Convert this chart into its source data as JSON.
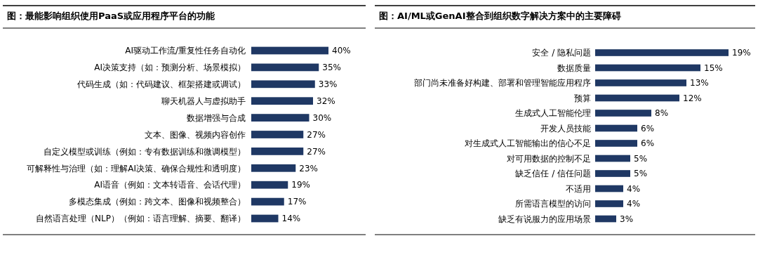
{
  "chart_data": [
    {
      "type": "bar",
      "orientation": "horizontal",
      "title": "图：最能影响组织使用PaaS或应用程序平台的功能",
      "color": "#1f3864",
      "categories": [
        "AI驱动工作流/重复性任务自动化",
        "AI决策支持（如：预测分析、场景模拟）",
        "代码生成（如：代码建议、框架搭建或调试）",
        "聊天机器人与虚拟助手",
        "数据增强与合成",
        "文本、图像、视频内容创作",
        "自定义模型或训练（例如：专有数据训练和微调模型）",
        "可解释性与治理（如：理解AI决策、确保合规性和透明度）",
        "AI语音（例如：文本转语音、会话代理）",
        "多模态集成（例如：跨文本、图像和视频整合）",
        "自然语言处理（NLP）（例如：语言理解、摘要、翻译）"
      ],
      "values": [
        40,
        35,
        33,
        32,
        30,
        27,
        27,
        23,
        19,
        17,
        14
      ],
      "value_labels": [
        "40%",
        "35%",
        "33%",
        "32%",
        "30%",
        "27%",
        "27%",
        "23%",
        "19%",
        "17%",
        "14%"
      ]
    },
    {
      "type": "bar",
      "orientation": "horizontal",
      "title": "图：AI/ML或GenAI整合到组织数字解决方案中的主要障碍",
      "color": "#1f3864",
      "categories": [
        "安全 / 隐私问题",
        "数据质量",
        "部门尚未准备好构建、部署和管理智能应用程序",
        "预算",
        "生成式人工智能伦理",
        "开发人员技能",
        "对生成式人工智能输出的信心不足",
        "对可用数据的控制不足",
        "缺乏信任 / 信任问题",
        "不适用",
        "所需语言模型的访问",
        "缺乏有说服力的应用场景"
      ],
      "values": [
        19,
        15,
        13,
        12,
        8,
        6,
        6,
        5,
        5,
        4,
        4,
        3
      ],
      "value_labels": [
        "19%",
        "15%",
        "13%",
        "12%",
        "8%",
        "6%",
        "6%",
        "5%",
        "5%",
        "4%",
        "4%",
        "3%"
      ]
    }
  ]
}
